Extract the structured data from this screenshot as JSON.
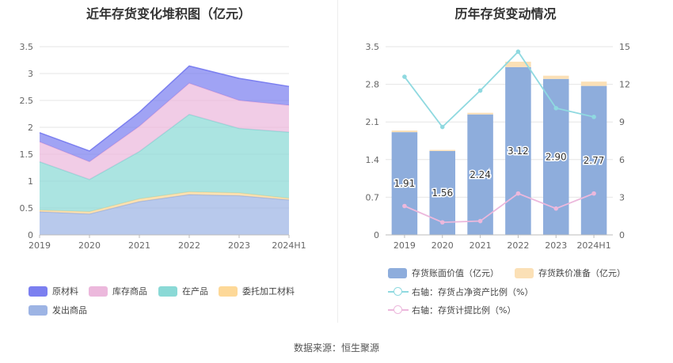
{
  "colors": {
    "raw_material": "#7b7ff0",
    "inventory_goods": "#ecb8dc",
    "wip": "#8ad9d6",
    "consigned": "#fdd898",
    "shipped": "#9db4e4",
    "bar_value": "#8eaddc",
    "bar_reserve": "#fbe0b6",
    "line_ratio": "#8fd9e0",
    "line_provision": "#ecb8dc"
  },
  "left_chart": {
    "title": "近年存货变化堆积图（亿元）",
    "legend": [
      {
        "name": "原材料",
        "color": "#7b7ff0"
      },
      {
        "name": "库存商品",
        "color": "#ecb8dc"
      },
      {
        "name": "在产品",
        "color": "#8ad9d6"
      },
      {
        "name": "委托加工材料",
        "color": "#fdd898"
      },
      {
        "name": "发出商品",
        "color": "#9db4e4"
      }
    ]
  },
  "right_chart": {
    "title": "历年存货变动情况",
    "legend": [
      {
        "name": "存货账面价值（亿元）",
        "color": "#8eaddc"
      },
      {
        "name": "存货跌价准备（亿元）",
        "color": "#fbe0b6"
      },
      {
        "name": "右轴：存货占净资产比例（%）",
        "color": "#8fd9e0"
      },
      {
        "name": "右轴：存货计提比例（%）",
        "color": "#ecb8dc"
      }
    ]
  },
  "chart_data": [
    {
      "type": "area",
      "stacked": true,
      "title": "近年存货变化堆积图（亿元）",
      "categories": [
        "2019",
        "2020",
        "2021",
        "2022",
        "2023",
        "2024H1"
      ],
      "ylim": [
        0,
        3.5
      ],
      "yticks": [
        "0",
        "0.5",
        "1",
        "1.5",
        "2",
        "2.5",
        "3",
        "3.5"
      ],
      "series": [
        {
          "name": "发出商品",
          "values": [
            0.43,
            0.39,
            0.62,
            0.75,
            0.73,
            0.65
          ]
        },
        {
          "name": "委托加工材料",
          "values": [
            0.03,
            0.04,
            0.05,
            0.05,
            0.05,
            0.03
          ]
        },
        {
          "name": "在产品",
          "values": [
            0.9,
            0.6,
            0.88,
            1.44,
            1.2,
            1.23
          ]
        },
        {
          "name": "库存商品",
          "values": [
            0.37,
            0.33,
            0.47,
            0.58,
            0.52,
            0.5
          ]
        },
        {
          "name": "原材料",
          "values": [
            0.17,
            0.2,
            0.26,
            0.32,
            0.41,
            0.35
          ]
        }
      ],
      "grid": true,
      "legend_position": "bottom"
    },
    {
      "type": "bar",
      "stacked": true,
      "title": "历年存货变动情况",
      "categories": [
        "2019",
        "2020",
        "2021",
        "2022",
        "2023",
        "2024H1"
      ],
      "ylim": [
        0,
        3.5
      ],
      "yticks": [
        "0",
        "0.7",
        "1.4",
        "2.1",
        "2.8",
        "3.5"
      ],
      "y2lim": [
        0,
        15
      ],
      "y2ticks": [
        "0",
        "3",
        "6",
        "9",
        "12",
        "15"
      ],
      "series": [
        {
          "name": "存货账面价值（亿元）",
          "axis": "left",
          "values": [
            1.91,
            1.56,
            2.24,
            3.12,
            2.9,
            2.77
          ],
          "labels": [
            "1.91",
            "1.56",
            "2.24",
            "3.12",
            "2.90",
            "2.77"
          ]
        },
        {
          "name": "存货跌价准备（亿元）",
          "axis": "left",
          "values": [
            0.03,
            0.02,
            0.03,
            0.1,
            0.06,
            0.08
          ]
        },
        {
          "name": "右轴：存货占净资产比例（%）",
          "type": "line",
          "axis": "right",
          "values": [
            12.6,
            8.6,
            11.5,
            14.6,
            10.1,
            9.4
          ]
        },
        {
          "name": "右轴：存货计提比例（%）",
          "type": "line",
          "axis": "right",
          "values": [
            2.3,
            1.0,
            1.1,
            3.3,
            2.1,
            3.3
          ]
        }
      ],
      "grid": true,
      "legend_position": "bottom"
    }
  ],
  "footer": {
    "source": "数据来源：恒生聚源"
  }
}
